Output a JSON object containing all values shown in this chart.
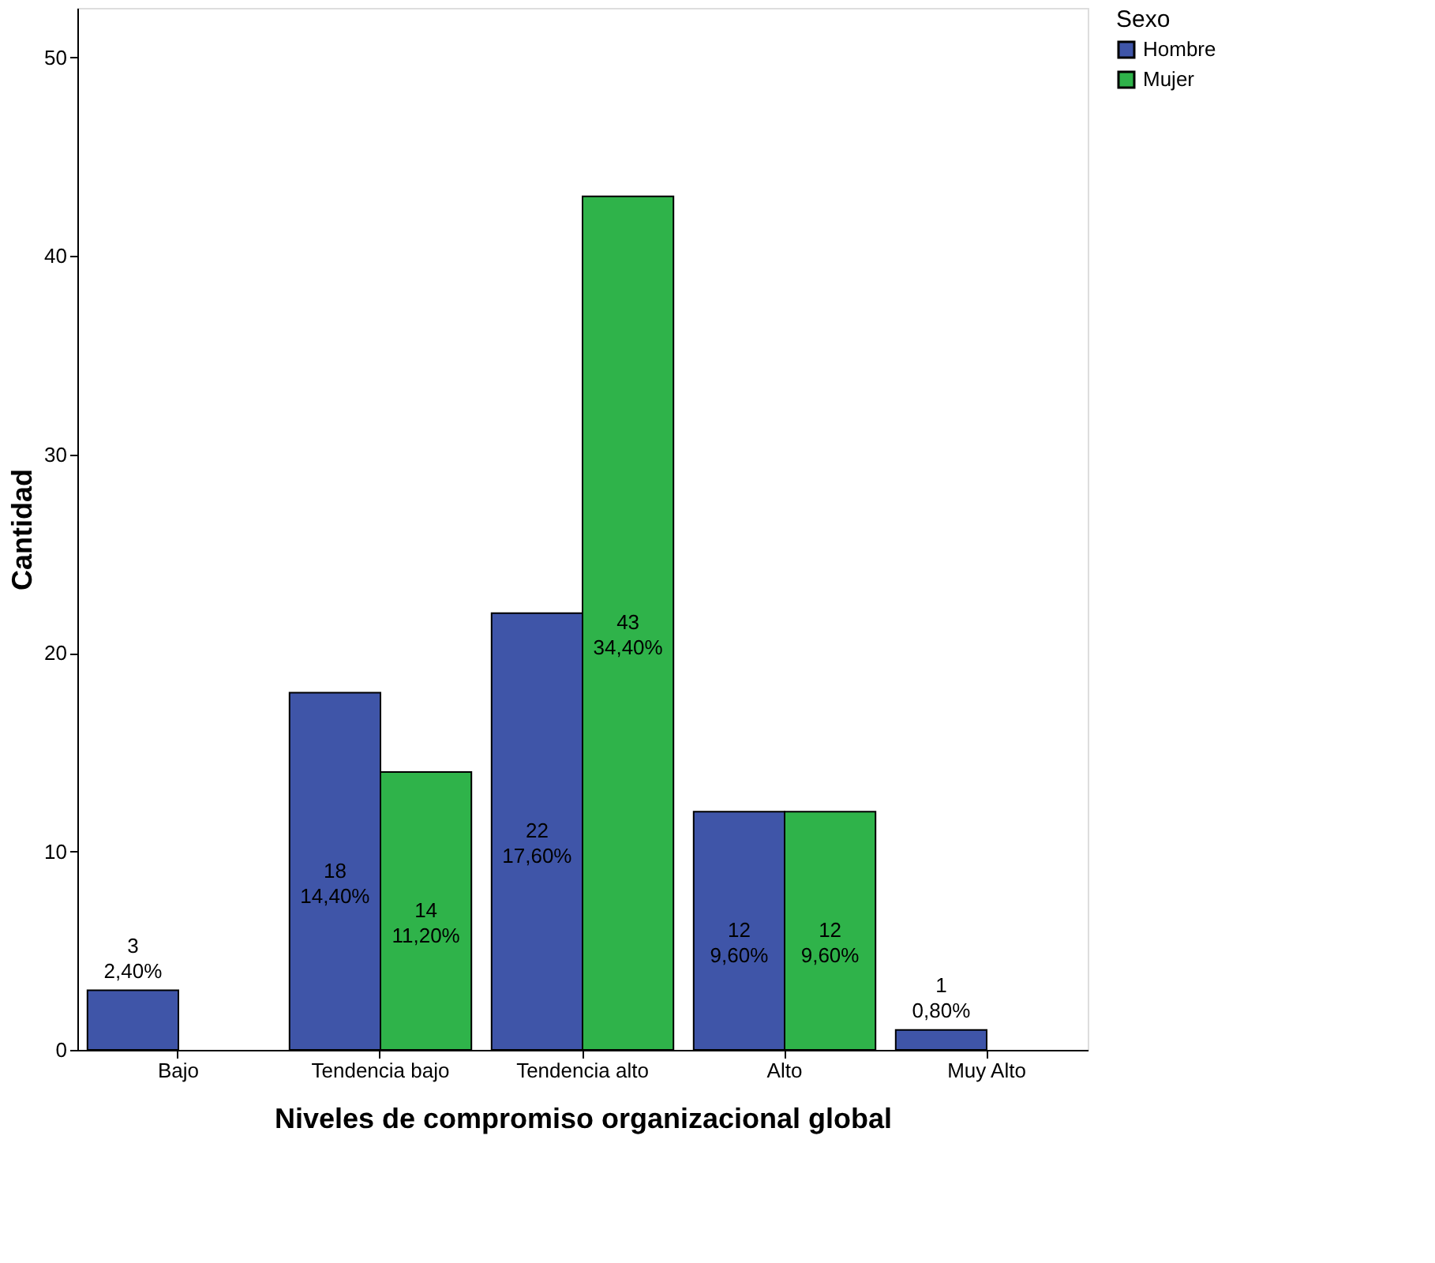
{
  "chart_data": {
    "type": "bar",
    "xlabel": "Niveles de compromiso organizacional global",
    "ylabel": "Cantidad",
    "legend_title": "Sexo",
    "legend": "top right",
    "categories": [
      "Bajo",
      "Tendencia bajo",
      "Tendencia alto",
      "Alto",
      "Muy Alto"
    ],
    "series": [
      {
        "name": "Hombre",
        "color": "#3f55a8",
        "values": [
          3,
          18,
          22,
          12,
          1
        ],
        "value_labels": [
          "3\n2,40%",
          "18\n14,40%",
          "22\n17,60%",
          "12\n9,60%",
          "1\n0,80%"
        ]
      },
      {
        "name": "Mujer",
        "color": "#2fb34a",
        "values": [
          null,
          14,
          43,
          12,
          null
        ],
        "value_labels": [
          null,
          "14\n11,20%",
          "43\n34,40%",
          "12\n9,60%",
          null
        ]
      }
    ],
    "ylim": [
      0,
      52.5
    ],
    "yticks": [
      0,
      10,
      20,
      30,
      40,
      50
    ],
    "grid": false
  }
}
